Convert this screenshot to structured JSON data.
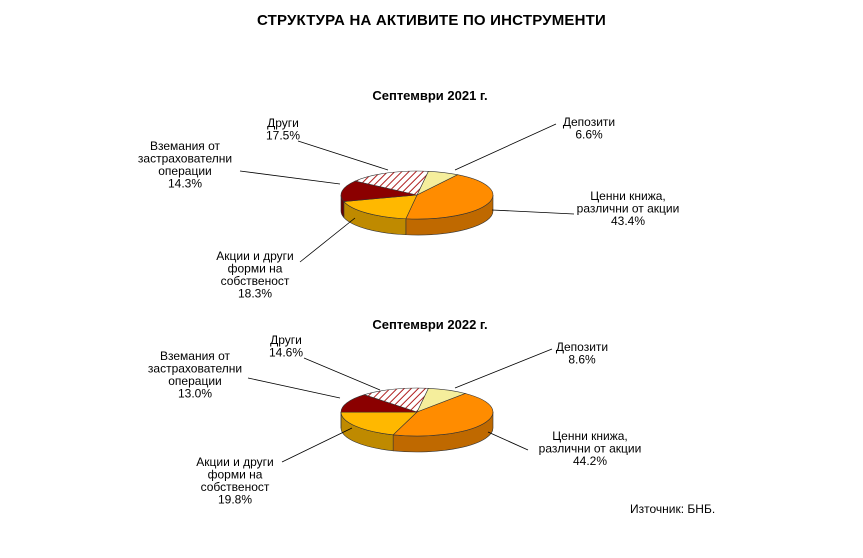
{
  "title": "СТРУКТУРА НА АКТИВИТЕ ПО ИНСТРУМЕНТИ",
  "source": "Източник:  БНБ.",
  "colors": {
    "deposits": "#F5EE9C",
    "securities": "#FF8C00",
    "equity": "#FFB800",
    "insurance": "#8B0000",
    "other": "#C08080"
  },
  "chart_data": [
    {
      "type": "pie",
      "title": "Септември 2021 г.",
      "categories": [
        "Депозити",
        "Ценни книжа, различни от акции",
        "Акции и други форми на собственост",
        "Вземания от застрахователни операции",
        "Други"
      ],
      "values": [
        6.6,
        43.4,
        18.3,
        14.3,
        17.5
      ],
      "labels": [
        [
          "Депозити",
          "6.6%"
        ],
        [
          "Ценни книжа,",
          "различни  от акции",
          "43.4%"
        ],
        [
          "Акции и други",
          "форми  на",
          "собственост",
          "18.3%"
        ],
        [
          "Вземания  от",
          "застрахователни",
          "операции",
          "14.3%"
        ],
        [
          "Други",
          "17.5%"
        ]
      ]
    },
    {
      "type": "pie",
      "title": "Септември 2022 г.",
      "categories": [
        "Депозити",
        "Ценни книжа, различни от акции",
        "Акции и други форми на собственост",
        "Вземания от застрахователни операции",
        "Други"
      ],
      "values": [
        8.6,
        44.2,
        19.8,
        13.0,
        14.6
      ],
      "labels": [
        [
          "Депозити",
          "8.6%"
        ],
        [
          "Ценни книжа,",
          "различни  от акции",
          "44.2%"
        ],
        [
          "Акции и други",
          "форми  на",
          "собственост",
          "19.8%"
        ],
        [
          "Вземания  от",
          "застрахователни",
          "операции",
          "13.0%"
        ],
        [
          "Други",
          "14.6%"
        ]
      ]
    }
  ]
}
